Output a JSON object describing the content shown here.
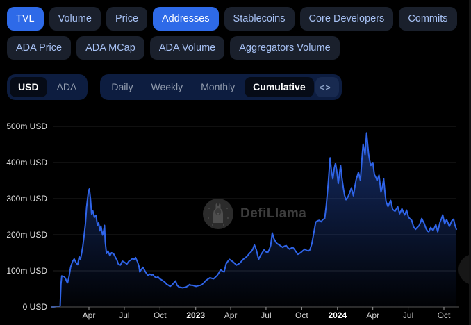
{
  "filter_tabs_row1": [
    {
      "label": "TVL",
      "active": true
    },
    {
      "label": "Volume",
      "active": false
    },
    {
      "label": "Price",
      "active": false
    },
    {
      "label": "Addresses",
      "active": true
    },
    {
      "label": "Stablecoins",
      "active": false
    },
    {
      "label": "Core Developers",
      "active": false
    },
    {
      "label": "Commits",
      "active": false
    }
  ],
  "filter_tabs_row2": [
    {
      "label": "ADA Price",
      "active": false
    },
    {
      "label": "ADA MCap",
      "active": false
    },
    {
      "label": "ADA Volume",
      "active": false
    },
    {
      "label": "Aggregators Volume",
      "active": false
    }
  ],
  "currency_toggle": [
    {
      "label": "USD",
      "active": true
    },
    {
      "label": "ADA",
      "active": false
    }
  ],
  "period_toggle": [
    {
      "label": "Daily",
      "active": false
    },
    {
      "label": "Weekly",
      "active": false
    },
    {
      "label": "Monthly",
      "active": false
    },
    {
      "label": "Cumulative",
      "active": true
    }
  ],
  "embed": {
    "label": "<>"
  },
  "watermark": {
    "text": "DefiLlama"
  },
  "colors": {
    "accent_blue": "#2e6ae8",
    "line": "#2f64e8",
    "area_top": "rgba(47,100,230,0.45)",
    "area_bottom": "rgba(47,100,230,0.02)",
    "grid": "#202020",
    "axis": "#565656",
    "tick": "#9a9a9a"
  },
  "chart_data": {
    "type": "area",
    "title": "",
    "xlabel": "",
    "ylabel": "",
    "unit": "m USD",
    "ylim": [
      0,
      500
    ],
    "grid": true,
    "legend_position": "none",
    "x_range": [
      "2021-12-26",
      "2024-11-02"
    ],
    "y_ticks": [
      {
        "label": "500m USD",
        "value": 500
      },
      {
        "label": "400m USD",
        "value": 400
      },
      {
        "label": "300m USD",
        "value": 300
      },
      {
        "label": "200m USD",
        "value": 200
      },
      {
        "label": "100m USD",
        "value": 100
      },
      {
        "label": "0 USD",
        "value": 0
      }
    ],
    "x_ticks": [
      {
        "label": "Apr",
        "date": "2022-04-01",
        "bold": false
      },
      {
        "label": "Jul",
        "date": "2022-07-01",
        "bold": false
      },
      {
        "label": "Oct",
        "date": "2022-10-01",
        "bold": false
      },
      {
        "label": "2023",
        "date": "2023-01-01",
        "bold": true
      },
      {
        "label": "Apr",
        "date": "2023-04-01",
        "bold": false
      },
      {
        "label": "Jul",
        "date": "2023-07-01",
        "bold": false
      },
      {
        "label": "Oct",
        "date": "2023-10-01",
        "bold": false
      },
      {
        "label": "2024",
        "date": "2024-01-01",
        "bold": true
      },
      {
        "label": "Apr",
        "date": "2024-04-01",
        "bold": false
      },
      {
        "label": "Jul",
        "date": "2024-07-01",
        "bold": false
      },
      {
        "label": "Oct",
        "date": "2024-10-01",
        "bold": false
      }
    ],
    "points": [
      [
        "2021-12-26",
        0
      ],
      [
        "2022-01-01",
        0
      ],
      [
        "2022-01-08",
        1
      ],
      [
        "2022-01-15",
        2
      ],
      [
        "2022-01-17",
        3
      ],
      [
        "2022-01-19",
        62
      ],
      [
        "2022-01-21",
        86
      ],
      [
        "2022-01-27",
        84
      ],
      [
        "2022-01-30",
        80
      ],
      [
        "2022-02-03",
        70
      ],
      [
        "2022-02-05",
        67
      ],
      [
        "2022-02-09",
        85
      ],
      [
        "2022-02-13",
        111
      ],
      [
        "2022-02-18",
        126
      ],
      [
        "2022-02-22",
        133
      ],
      [
        "2022-02-26",
        124
      ],
      [
        "2022-03-03",
        117
      ],
      [
        "2022-03-07",
        139
      ],
      [
        "2022-03-10",
        131
      ],
      [
        "2022-03-13",
        148
      ],
      [
        "2022-03-16",
        167
      ],
      [
        "2022-03-19",
        192
      ],
      [
        "2022-03-23",
        231
      ],
      [
        "2022-03-26",
        276
      ],
      [
        "2022-03-31",
        322
      ],
      [
        "2022-04-02",
        327
      ],
      [
        "2022-04-05",
        300
      ],
      [
        "2022-04-08",
        257
      ],
      [
        "2022-04-11",
        266
      ],
      [
        "2022-04-15",
        248
      ],
      [
        "2022-04-19",
        254
      ],
      [
        "2022-04-23",
        226
      ],
      [
        "2022-04-26",
        233
      ],
      [
        "2022-04-29",
        211
      ],
      [
        "2022-05-02",
        224
      ],
      [
        "2022-05-06",
        199
      ],
      [
        "2022-05-09",
        210
      ],
      [
        "2022-05-11",
        226
      ],
      [
        "2022-05-13",
        180
      ],
      [
        "2022-05-16",
        148
      ],
      [
        "2022-05-20",
        155
      ],
      [
        "2022-05-25",
        142
      ],
      [
        "2022-05-29",
        150
      ],
      [
        "2022-06-03",
        148
      ],
      [
        "2022-06-08",
        138
      ],
      [
        "2022-06-12",
        130
      ],
      [
        "2022-06-16",
        118
      ],
      [
        "2022-06-21",
        116
      ],
      [
        "2022-06-26",
        127
      ],
      [
        "2022-06-30",
        125
      ],
      [
        "2022-07-05",
        121
      ],
      [
        "2022-07-08",
        119
      ],
      [
        "2022-07-13",
        127
      ],
      [
        "2022-07-17",
        129
      ],
      [
        "2022-07-22",
        134
      ],
      [
        "2022-07-27",
        132
      ],
      [
        "2022-07-30",
        137
      ],
      [
        "2022-08-04",
        125
      ],
      [
        "2022-08-08",
        112
      ],
      [
        "2022-08-10",
        97
      ],
      [
        "2022-08-14",
        104
      ],
      [
        "2022-08-18",
        110
      ],
      [
        "2022-08-23",
        100
      ],
      [
        "2022-08-27",
        93
      ],
      [
        "2022-08-31",
        87
      ],
      [
        "2022-09-05",
        91
      ],
      [
        "2022-09-09",
        88
      ],
      [
        "2022-09-12",
        90
      ],
      [
        "2022-09-16",
        85
      ],
      [
        "2022-09-21",
        81
      ],
      [
        "2022-09-26",
        83
      ],
      [
        "2022-09-30",
        78
      ],
      [
        "2022-10-05",
        75
      ],
      [
        "2022-10-09",
        72
      ],
      [
        "2022-10-14",
        68
      ],
      [
        "2022-10-18",
        63
      ],
      [
        "2022-10-23",
        60
      ],
      [
        "2022-10-27",
        57
      ],
      [
        "2022-11-01",
        61
      ],
      [
        "2022-11-05",
        66
      ],
      [
        "2022-11-10",
        72
      ],
      [
        "2022-11-14",
        60
      ],
      [
        "2022-11-19",
        55
      ],
      [
        "2022-11-24",
        54
      ],
      [
        "2022-11-28",
        53
      ],
      [
        "2022-12-03",
        54
      ],
      [
        "2022-12-07",
        55
      ],
      [
        "2022-12-12",
        58
      ],
      [
        "2022-12-16",
        62
      ],
      [
        "2022-12-20",
        60
      ],
      [
        "2022-12-24",
        60
      ],
      [
        "2022-12-29",
        58
      ],
      [
        "2023-01-02",
        57
      ],
      [
        "2023-01-08",
        59
      ],
      [
        "2023-01-13",
        60
      ],
      [
        "2023-01-17",
        62
      ],
      [
        "2023-01-22",
        67
      ],
      [
        "2023-01-26",
        72
      ],
      [
        "2023-02-01",
        77
      ],
      [
        "2023-02-07",
        81
      ],
      [
        "2023-02-12",
        79
      ],
      [
        "2023-02-16",
        78
      ],
      [
        "2023-02-21",
        83
      ],
      [
        "2023-02-25",
        87
      ],
      [
        "2023-03-02",
        95
      ],
      [
        "2023-03-06",
        103
      ],
      [
        "2023-03-11",
        99
      ],
      [
        "2023-03-15",
        97
      ],
      [
        "2023-03-20",
        119
      ],
      [
        "2023-03-25",
        127
      ],
      [
        "2023-03-29",
        132
      ],
      [
        "2023-04-03",
        128
      ],
      [
        "2023-04-07",
        125
      ],
      [
        "2023-04-12",
        120
      ],
      [
        "2023-04-16",
        116
      ],
      [
        "2023-04-21",
        119
      ],
      [
        "2023-04-25",
        122
      ],
      [
        "2023-04-29",
        127
      ],
      [
        "2023-05-03",
        132
      ],
      [
        "2023-05-08",
        136
      ],
      [
        "2023-05-12",
        139
      ],
      [
        "2023-05-16",
        144
      ],
      [
        "2023-05-19",
        148
      ],
      [
        "2023-05-24",
        153
      ],
      [
        "2023-05-28",
        160
      ],
      [
        "2023-06-01",
        172
      ],
      [
        "2023-06-06",
        158
      ],
      [
        "2023-06-10",
        140
      ],
      [
        "2023-06-12",
        132
      ],
      [
        "2023-06-17",
        143
      ],
      [
        "2023-06-21",
        150
      ],
      [
        "2023-06-26",
        158
      ],
      [
        "2023-06-30",
        153
      ],
      [
        "2023-07-05",
        150
      ],
      [
        "2023-07-09",
        158
      ],
      [
        "2023-07-13",
        170
      ],
      [
        "2023-07-17",
        205
      ],
      [
        "2023-07-21",
        190
      ],
      [
        "2023-07-26",
        180
      ],
      [
        "2023-07-30",
        175
      ],
      [
        "2023-08-04",
        172
      ],
      [
        "2023-08-09",
        168
      ],
      [
        "2023-08-13",
        165
      ],
      [
        "2023-08-17",
        168
      ],
      [
        "2023-08-22",
        170
      ],
      [
        "2023-08-26",
        164
      ],
      [
        "2023-08-31",
        160
      ],
      [
        "2023-09-04",
        163
      ],
      [
        "2023-09-08",
        165
      ],
      [
        "2023-09-13",
        158
      ],
      [
        "2023-09-17",
        152
      ],
      [
        "2023-09-21",
        146
      ],
      [
        "2023-09-26",
        149
      ],
      [
        "2023-09-30",
        152
      ],
      [
        "2023-10-04",
        156
      ],
      [
        "2023-10-09",
        160
      ],
      [
        "2023-10-13",
        157
      ],
      [
        "2023-10-18",
        155
      ],
      [
        "2023-10-22",
        158
      ],
      [
        "2023-10-27",
        175
      ],
      [
        "2023-11-01",
        205
      ],
      [
        "2023-11-06",
        235
      ],
      [
        "2023-11-10",
        238
      ],
      [
        "2023-11-15",
        240
      ],
      [
        "2023-11-20",
        236
      ],
      [
        "2023-11-24",
        242
      ],
      [
        "2023-11-29",
        245
      ],
      [
        "2023-12-03",
        280
      ],
      [
        "2023-12-08",
        340
      ],
      [
        "2023-12-13",
        413
      ],
      [
        "2023-12-16",
        380
      ],
      [
        "2023-12-20",
        355
      ],
      [
        "2023-12-24",
        385
      ],
      [
        "2023-12-27",
        398
      ],
      [
        "2023-12-31",
        370
      ],
      [
        "2024-01-03",
        342
      ],
      [
        "2024-01-09",
        392
      ],
      [
        "2024-01-12",
        360
      ],
      [
        "2024-01-16",
        330
      ],
      [
        "2024-01-19",
        310
      ],
      [
        "2024-01-23",
        297
      ],
      [
        "2024-01-28",
        305
      ],
      [
        "2024-02-01",
        315
      ],
      [
        "2024-02-06",
        330
      ],
      [
        "2024-02-11",
        308
      ],
      [
        "2024-02-15",
        335
      ],
      [
        "2024-02-18",
        352
      ],
      [
        "2024-02-24",
        373
      ],
      [
        "2024-02-29",
        350
      ],
      [
        "2024-03-04",
        410
      ],
      [
        "2024-03-07",
        451
      ],
      [
        "2024-03-12",
        422
      ],
      [
        "2024-03-16",
        482
      ],
      [
        "2024-03-21",
        425
      ],
      [
        "2024-03-24",
        405
      ],
      [
        "2024-03-27",
        392
      ],
      [
        "2024-04-01",
        400
      ],
      [
        "2024-04-05",
        367
      ],
      [
        "2024-04-09",
        358
      ],
      [
        "2024-04-12",
        350
      ],
      [
        "2024-04-17",
        365
      ],
      [
        "2024-04-22",
        318
      ],
      [
        "2024-04-26",
        335
      ],
      [
        "2024-04-29",
        355
      ],
      [
        "2024-05-02",
        320
      ],
      [
        "2024-05-05",
        292
      ],
      [
        "2024-05-10",
        278
      ],
      [
        "2024-05-14",
        288
      ],
      [
        "2024-05-17",
        295
      ],
      [
        "2024-05-22",
        270
      ],
      [
        "2024-05-28",
        265
      ],
      [
        "2024-06-01",
        272
      ],
      [
        "2024-06-04",
        278
      ],
      [
        "2024-06-09",
        258
      ],
      [
        "2024-06-15",
        272
      ],
      [
        "2024-06-19",
        262
      ],
      [
        "2024-06-22",
        255
      ],
      [
        "2024-06-27",
        268
      ],
      [
        "2024-07-02",
        248
      ],
      [
        "2024-07-06",
        244
      ],
      [
        "2024-07-10",
        240
      ],
      [
        "2024-07-15",
        222
      ],
      [
        "2024-07-20",
        215
      ],
      [
        "2024-07-24",
        220
      ],
      [
        "2024-07-29",
        225
      ],
      [
        "2024-08-02",
        235
      ],
      [
        "2024-08-05",
        245
      ],
      [
        "2024-08-08",
        238
      ],
      [
        "2024-08-11",
        232
      ],
      [
        "2024-08-16",
        217
      ],
      [
        "2024-08-20",
        210
      ],
      [
        "2024-08-23",
        208
      ],
      [
        "2024-08-28",
        220
      ],
      [
        "2024-09-03",
        212
      ],
      [
        "2024-09-07",
        220
      ],
      [
        "2024-09-10",
        228
      ],
      [
        "2024-09-15",
        208
      ],
      [
        "2024-09-21",
        235
      ],
      [
        "2024-09-25",
        245
      ],
      [
        "2024-09-28",
        255
      ],
      [
        "2024-10-03",
        230
      ],
      [
        "2024-10-08",
        242
      ],
      [
        "2024-10-12",
        232
      ],
      [
        "2024-10-15",
        223
      ],
      [
        "2024-10-18",
        230
      ],
      [
        "2024-10-21",
        238
      ],
      [
        "2024-10-26",
        243
      ],
      [
        "2024-10-29",
        228
      ],
      [
        "2024-11-02",
        215
      ]
    ]
  }
}
